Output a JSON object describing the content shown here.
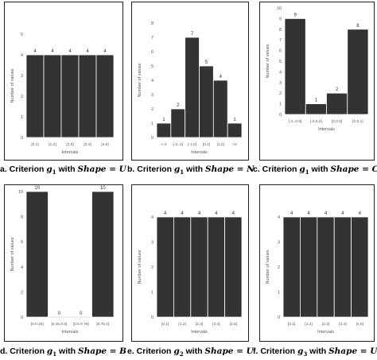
{
  "figure": {
    "panels": [
      {
        "caption_prefix": "a. Criterion ",
        "g": "g",
        "sub": "1",
        "shape": "U"
      },
      {
        "caption_prefix": "b. Criterion ",
        "g": "g",
        "sub": "1",
        "shape": "N"
      },
      {
        "caption_prefix": "c. Criterion ",
        "g": "g",
        "sub": "1",
        "shape": "C"
      },
      {
        "caption_prefix": "d. Criterion ",
        "g": "g",
        "sub": "1",
        "shape": "B"
      },
      {
        "caption_prefix": "e. Criterion ",
        "g": "g",
        "sub": "2",
        "shape": "U"
      },
      {
        "caption_prefix": "f. Criterion ",
        "g": "g",
        "sub": "3",
        "shape": "U"
      }
    ],
    "with_text": " with ",
    "shape_word": "Shape",
    "equals": " = "
  },
  "chart_data": [
    {
      "type": "bar",
      "categories": [
        "[0,1]",
        "[1,2]",
        "[2,3]",
        "[3,4]",
        "[4,5]"
      ],
      "values": [
        4,
        4,
        4,
        4,
        4
      ],
      "ylim": [
        0,
        5
      ],
      "yticks": [
        0,
        1,
        2,
        3,
        4,
        5
      ],
      "xlabel": "Intervals",
      "ylabel": "Number of values",
      "bar_color": "#333333"
    },
    {
      "type": "bar",
      "categories": [
        "<-2",
        "[-2,-1]",
        "[-1,0]",
        "[0,1]",
        "[1,2]",
        ">2"
      ],
      "values": [
        1,
        2,
        7,
        5,
        4,
        1
      ],
      "ylim": [
        0,
        8
      ],
      "yticks": [
        0,
        1,
        2,
        3,
        4,
        5,
        6,
        7,
        8
      ],
      "xlabel": "Intervals",
      "ylabel": "Number of values",
      "bar_color": "#333333"
    },
    {
      "type": "bar",
      "categories": [
        "[-1,-0.5]",
        "]-0.5,0]",
        "[0,0.5]",
        "[0.5,1]"
      ],
      "values": [
        9,
        1,
        2,
        8
      ],
      "ylim": [
        0,
        10
      ],
      "yticks": [
        0,
        1,
        2,
        3,
        4,
        5,
        6,
        7,
        8,
        9,
        10
      ],
      "xlabel": "Intervals",
      "ylabel": "Number of values",
      "bar_color": "#333333"
    },
    {
      "type": "bar",
      "categories": [
        "[0,0.25]",
        "]0.25,0.5]",
        "]0.5,0.75]",
        "]0.75,1]"
      ],
      "values": [
        10,
        0,
        0,
        10
      ],
      "ylim": [
        0,
        10
      ],
      "yticks": [
        0,
        2,
        4,
        6,
        8,
        10
      ],
      "xlabel": "Intervals",
      "ylabel": "Number of values",
      "bar_color": "#333333"
    },
    {
      "type": "bar",
      "categories": [
        "[0,1]",
        "[1,2]",
        "[2,3]",
        "[3,4]",
        "[4,5]"
      ],
      "values": [
        4,
        4,
        4,
        4,
        4
      ],
      "ylim": [
        0,
        4
      ],
      "yticks": [
        0,
        1,
        2,
        3,
        4
      ],
      "xlabel": "Intervals",
      "ylabel": "Number of values",
      "bar_color": "#333333"
    },
    {
      "type": "bar",
      "categories": [
        "[0,1]",
        "[1,2]",
        "[2,3]",
        "[3,4]",
        "[4,5]"
      ],
      "values": [
        4,
        4,
        4,
        4,
        4
      ],
      "ylim": [
        0,
        4
      ],
      "yticks": [
        0,
        1,
        2,
        3,
        4
      ],
      "xlabel": "Intervals",
      "ylabel": "Number of values",
      "bar_color": "#333333"
    }
  ]
}
